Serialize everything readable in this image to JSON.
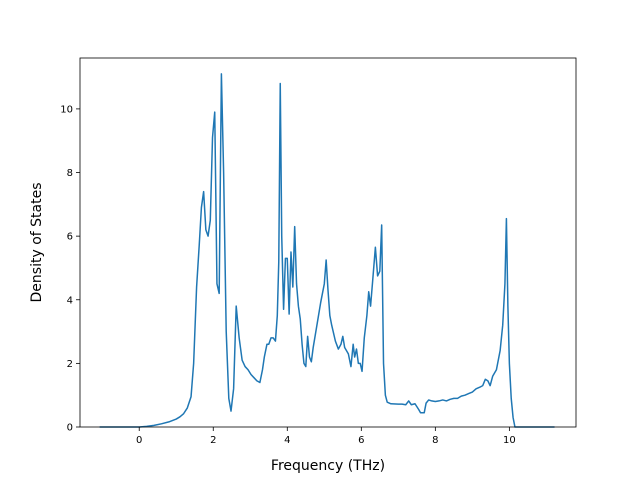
{
  "chart_data": {
    "type": "line",
    "title": "",
    "xlabel": "Frequency (THz)",
    "ylabel": "Density of States",
    "xlim": [
      -1.6,
      11.8
    ],
    "ylim": [
      0,
      11.6
    ],
    "xticks": [
      0,
      2,
      4,
      6,
      8,
      10
    ],
    "yticks": [
      0,
      2,
      4,
      6,
      8,
      10
    ],
    "grid": false,
    "legend": "none",
    "series": [
      {
        "color": "#1f77b4",
        "points": [
          [
            -1.05,
            0
          ],
          [
            -0.5,
            0
          ],
          [
            0.0,
            0.0
          ],
          [
            0.2,
            0.02
          ],
          [
            0.4,
            0.05
          ],
          [
            0.6,
            0.1
          ],
          [
            0.8,
            0.16
          ],
          [
            1.0,
            0.25
          ],
          [
            1.1,
            0.32
          ],
          [
            1.2,
            0.42
          ],
          [
            1.3,
            0.6
          ],
          [
            1.4,
            0.95
          ],
          [
            1.47,
            2.0
          ],
          [
            1.55,
            4.4
          ],
          [
            1.62,
            5.7
          ],
          [
            1.68,
            6.9
          ],
          [
            1.74,
            7.4
          ],
          [
            1.8,
            6.2
          ],
          [
            1.86,
            6.0
          ],
          [
            1.92,
            6.5
          ],
          [
            1.98,
            9.1
          ],
          [
            2.04,
            9.9
          ],
          [
            2.1,
            4.5
          ],
          [
            2.16,
            4.2
          ],
          [
            2.22,
            11.1
          ],
          [
            2.28,
            8.0
          ],
          [
            2.35,
            3.0
          ],
          [
            2.42,
            0.9
          ],
          [
            2.48,
            0.5
          ],
          [
            2.55,
            1.2
          ],
          [
            2.62,
            3.8
          ],
          [
            2.7,
            2.8
          ],
          [
            2.78,
            2.1
          ],
          [
            2.86,
            1.9
          ],
          [
            2.94,
            1.8
          ],
          [
            3.02,
            1.65
          ],
          [
            3.1,
            1.55
          ],
          [
            3.18,
            1.45
          ],
          [
            3.26,
            1.4
          ],
          [
            3.33,
            1.8
          ],
          [
            3.38,
            2.2
          ],
          [
            3.45,
            2.6
          ],
          [
            3.5,
            2.6
          ],
          [
            3.56,
            2.8
          ],
          [
            3.62,
            2.8
          ],
          [
            3.68,
            2.7
          ],
          [
            3.73,
            3.5
          ],
          [
            3.77,
            5.2
          ],
          [
            3.81,
            10.8
          ],
          [
            3.85,
            6.0
          ],
          [
            3.9,
            3.7
          ],
          [
            3.95,
            5.3
          ],
          [
            4.0,
            5.3
          ],
          [
            4.05,
            3.55
          ],
          [
            4.1,
            5.5
          ],
          [
            4.15,
            4.4
          ],
          [
            4.2,
            6.3
          ],
          [
            4.25,
            4.5
          ],
          [
            4.3,
            3.8
          ],
          [
            4.35,
            3.4
          ],
          [
            4.4,
            2.6
          ],
          [
            4.45,
            2.0
          ],
          [
            4.5,
            1.9
          ],
          [
            4.55,
            2.85
          ],
          [
            4.6,
            2.2
          ],
          [
            4.65,
            2.05
          ],
          [
            4.7,
            2.5
          ],
          [
            4.8,
            3.2
          ],
          [
            4.9,
            3.9
          ],
          [
            5.0,
            4.5
          ],
          [
            5.05,
            5.25
          ],
          [
            5.1,
            4.3
          ],
          [
            5.15,
            3.5
          ],
          [
            5.2,
            3.2
          ],
          [
            5.3,
            2.7
          ],
          [
            5.38,
            2.45
          ],
          [
            5.45,
            2.6
          ],
          [
            5.5,
            2.85
          ],
          [
            5.55,
            2.5
          ],
          [
            5.65,
            2.3
          ],
          [
            5.72,
            1.9
          ],
          [
            5.78,
            2.6
          ],
          [
            5.82,
            2.2
          ],
          [
            5.87,
            2.45
          ],
          [
            5.92,
            2.0
          ],
          [
            5.97,
            2.0
          ],
          [
            6.02,
            1.75
          ],
          [
            6.08,
            2.8
          ],
          [
            6.15,
            3.5
          ],
          [
            6.2,
            4.25
          ],
          [
            6.25,
            3.8
          ],
          [
            6.3,
            4.5
          ],
          [
            6.38,
            5.65
          ],
          [
            6.44,
            4.75
          ],
          [
            6.5,
            4.9
          ],
          [
            6.55,
            6.35
          ],
          [
            6.6,
            2.0
          ],
          [
            6.65,
            1.0
          ],
          [
            6.7,
            0.78
          ],
          [
            6.8,
            0.73
          ],
          [
            7.0,
            0.72
          ],
          [
            7.1,
            0.72
          ],
          [
            7.2,
            0.7
          ],
          [
            7.28,
            0.82
          ],
          [
            7.35,
            0.7
          ],
          [
            7.45,
            0.73
          ],
          [
            7.55,
            0.55
          ],
          [
            7.6,
            0.45
          ],
          [
            7.7,
            0.45
          ],
          [
            7.75,
            0.75
          ],
          [
            7.82,
            0.85
          ],
          [
            7.9,
            0.82
          ],
          [
            8.0,
            0.8
          ],
          [
            8.1,
            0.82
          ],
          [
            8.2,
            0.85
          ],
          [
            8.3,
            0.82
          ],
          [
            8.4,
            0.87
          ],
          [
            8.5,
            0.9
          ],
          [
            8.6,
            0.9
          ],
          [
            8.7,
            0.97
          ],
          [
            8.8,
            1.0
          ],
          [
            8.9,
            1.05
          ],
          [
            9.0,
            1.1
          ],
          [
            9.1,
            1.2
          ],
          [
            9.2,
            1.25
          ],
          [
            9.28,
            1.3
          ],
          [
            9.35,
            1.5
          ],
          [
            9.42,
            1.45
          ],
          [
            9.48,
            1.3
          ],
          [
            9.55,
            1.6
          ],
          [
            9.65,
            1.8
          ],
          [
            9.75,
            2.4
          ],
          [
            9.82,
            3.2
          ],
          [
            9.88,
            4.5
          ],
          [
            9.92,
            6.55
          ],
          [
            9.96,
            3.8
          ],
          [
            10.0,
            2.0
          ],
          [
            10.05,
            0.9
          ],
          [
            10.1,
            0.3
          ],
          [
            10.15,
            0.0
          ],
          [
            10.6,
            0.0
          ],
          [
            11.2,
            0.0
          ]
        ]
      }
    ]
  }
}
